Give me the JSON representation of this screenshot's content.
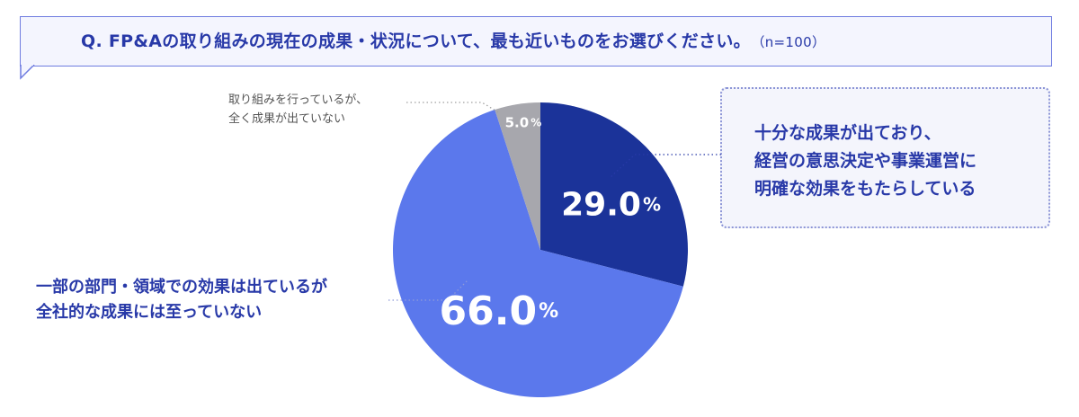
{
  "question": {
    "text": "Q.  FP&Aの取り組みの現在の成果・状況について、最も近いものをお選びください。",
    "n_label": "（n=100）"
  },
  "colors": {
    "accent": "#2839a8",
    "slice_29": "#1b3399",
    "slice_66": "#5b78ec",
    "slice_5": "#a7a7ad"
  },
  "chart_data": {
    "type": "pie",
    "title": "",
    "n": 100,
    "slices": [
      {
        "name": "十分な成果が出ており、経営の意思決定や事業運営に明確な効果をもたらしている",
        "value": 29.0,
        "value_text": "29.0",
        "color": "#1b3399",
        "label_lines": [
          "十分な成果が出ており、",
          "経営の意思決定や事業運営に",
          "明確な効果をもたらしている"
        ]
      },
      {
        "name": "一部の部門・領域での効果は出ているが全社的な成果には至っていない",
        "value": 66.0,
        "value_text": "66.0",
        "color": "#5b78ec",
        "label_lines": [
          "一部の部門・領域での効果は出ているが",
          "全社的な成果には至っていない"
        ]
      },
      {
        "name": "取り組みを行っているが、全く成果が出ていない",
        "value": 5.0,
        "value_text": "5.0",
        "color": "#a7a7ad",
        "label_lines": [
          "取り組みを行っているが、",
          "全く成果が出ていない"
        ]
      }
    ],
    "unit": "%",
    "start_angle": "12 o'clock",
    "direction": "clockwise"
  }
}
